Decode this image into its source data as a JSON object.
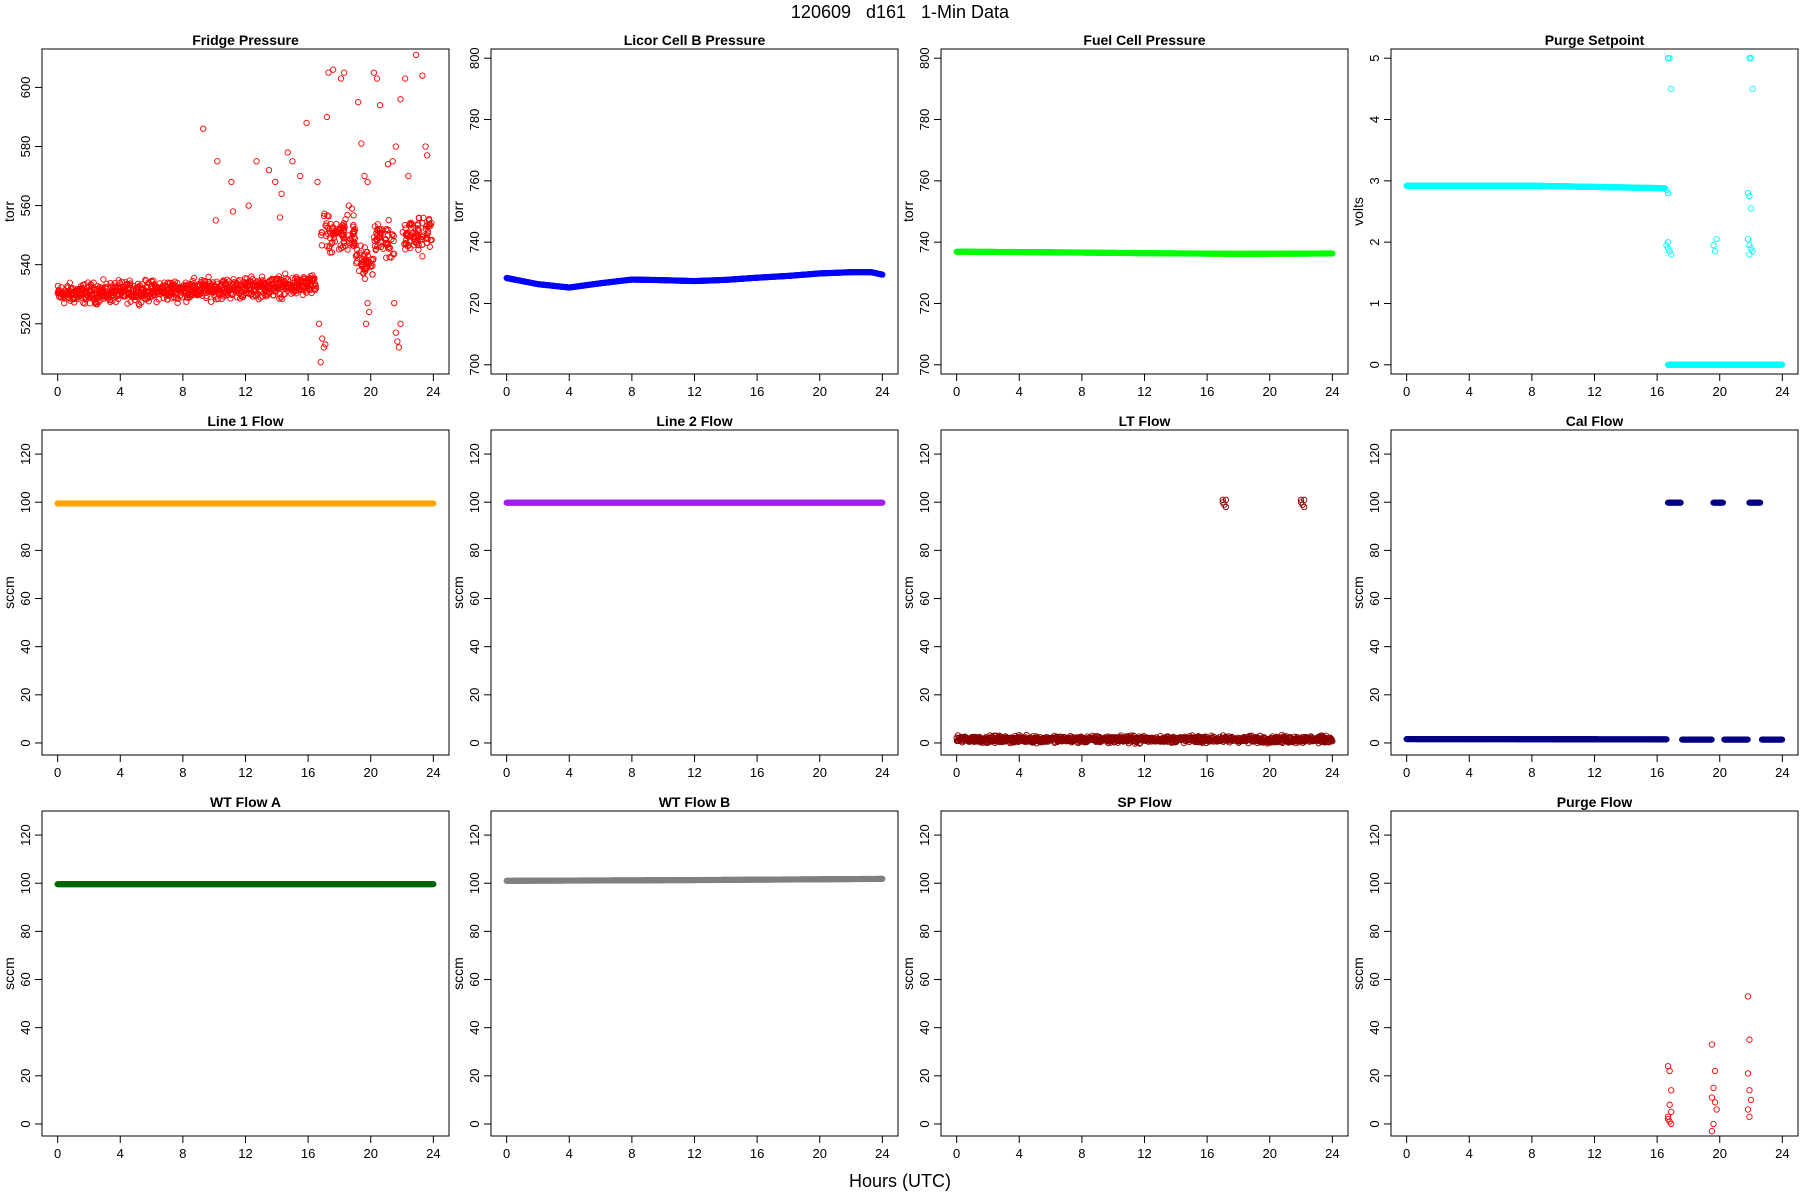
{
  "figure": {
    "title": "120609   d161   1-Min Data",
    "xlabel": "Hours (UTC)"
  },
  "chart_data": [
    {
      "type": "scatter",
      "title": "Fridge Pressure",
      "ylabel": "torr",
      "color": "#ff0000",
      "xlim": [
        -1,
        25
      ],
      "ylim": [
        503,
        613
      ],
      "xticks": [
        0,
        4,
        8,
        12,
        16,
        20,
        24
      ],
      "yticks": [
        520,
        540,
        560,
        580,
        600
      ],
      "series": [
        {
          "mode": "noisy",
          "x_start": 0,
          "x_end": 16.5,
          "y_start": 530,
          "y_end": 533,
          "noise": 10
        }
      ],
      "points": [
        [
          9.3,
          586
        ],
        [
          10.2,
          575
        ],
        [
          10.1,
          555
        ],
        [
          11.1,
          568
        ],
        [
          11.2,
          558
        ],
        [
          12.2,
          560
        ],
        [
          12.7,
          575
        ],
        [
          13.5,
          572
        ],
        [
          13.9,
          568
        ],
        [
          14.3,
          564
        ],
        [
          14.7,
          578
        ],
        [
          15.0,
          575
        ],
        [
          14.2,
          556
        ],
        [
          15.5,
          570
        ],
        [
          15.9,
          588
        ],
        [
          16.6,
          568
        ],
        [
          17.2,
          590
        ],
        [
          17.3,
          605
        ],
        [
          17.6,
          606
        ],
        [
          18.1,
          603
        ],
        [
          18.3,
          605
        ],
        [
          18.6,
          560
        ],
        [
          18.8,
          559
        ],
        [
          19.2,
          595
        ],
        [
          19.4,
          581
        ],
        [
          19.6,
          570
        ],
        [
          19.8,
          568
        ],
        [
          20.2,
          605
        ],
        [
          20.4,
          603
        ],
        [
          20.6,
          594
        ],
        [
          21.1,
          574
        ],
        [
          21.4,
          575
        ],
        [
          21.6,
          580
        ],
        [
          21.9,
          596
        ],
        [
          22.2,
          603
        ],
        [
          22.4,
          570
        ],
        [
          22.9,
          611
        ],
        [
          23.3,
          604
        ],
        [
          23.5,
          580
        ],
        [
          23.6,
          577
        ],
        [
          16.9,
          515
        ],
        [
          17.0,
          512
        ],
        [
          16.7,
          520
        ],
        [
          16.8,
          507
        ],
        [
          17.1,
          513
        ],
        [
          19.7,
          520
        ],
        [
          19.8,
          527
        ],
        [
          19.9,
          524
        ],
        [
          21.5,
          527
        ],
        [
          21.6,
          517
        ],
        [
          21.7,
          514
        ],
        [
          21.8,
          512
        ],
        [
          21.9,
          520
        ]
      ],
      "clusters": [
        {
          "x_start": 16.8,
          "x_end": 19.0,
          "y_center": 550,
          "spread": 9,
          "count": 90
        },
        {
          "x_start": 19.0,
          "x_end": 20.2,
          "y_center": 541,
          "spread": 8,
          "count": 50
        },
        {
          "x_start": 20.2,
          "x_end": 21.5,
          "y_center": 549,
          "spread": 9,
          "count": 55
        },
        {
          "x_start": 22.0,
          "x_end": 23.9,
          "y_center": 550,
          "spread": 8,
          "count": 80
        }
      ],
      "marker": "open"
    },
    {
      "type": "scatter",
      "title": "Licor Cell B Pressure",
      "ylabel": "torr",
      "color": "#0000ff",
      "xlim": [
        -1,
        25
      ],
      "ylim": [
        697,
        803
      ],
      "xticks": [
        0,
        4,
        8,
        12,
        16,
        20,
        24
      ],
      "yticks": [
        700,
        720,
        740,
        760,
        780,
        800
      ],
      "series": [
        {
          "mode": "curve",
          "points": [
            [
              0,
              728.3
            ],
            [
              2,
              726.3
            ],
            [
              4,
              725.2
            ],
            [
              6,
              726.6
            ],
            [
              8,
              727.8
            ],
            [
              10,
              727.6
            ],
            [
              12,
              727.3
            ],
            [
              14,
              727.7
            ],
            [
              16,
              728.4
            ],
            [
              18,
              729.0
            ],
            [
              20,
              729.8
            ],
            [
              22,
              730.2
            ],
            [
              23.3,
              730.2
            ],
            [
              24,
              729.4
            ]
          ]
        }
      ],
      "marker": "filled"
    },
    {
      "type": "scatter",
      "title": "Fuel Cell Pressure",
      "ylabel": "torr",
      "color": "#00ff00",
      "xlim": [
        -1,
        25
      ],
      "ylim": [
        697,
        803
      ],
      "xticks": [
        0,
        4,
        8,
        12,
        16,
        20,
        24
      ],
      "yticks": [
        700,
        720,
        740,
        760,
        780,
        800
      ],
      "series": [
        {
          "mode": "curve",
          "points": [
            [
              0,
              736.9
            ],
            [
              6,
              736.7
            ],
            [
              12,
              736.4
            ],
            [
              18,
              736.2
            ],
            [
              24,
              736.3
            ]
          ]
        }
      ],
      "marker": "filled"
    },
    {
      "type": "scatter",
      "title": "Purge Setpoint",
      "ylabel": "volts",
      "color": "#00ffff",
      "xlim": [
        -1,
        25
      ],
      "ylim": [
        -0.15,
        5.15
      ],
      "xticks": [
        0,
        4,
        8,
        12,
        16,
        20,
        24
      ],
      "yticks": [
        0,
        1,
        2,
        3,
        4,
        5
      ],
      "series": [
        {
          "mode": "curve",
          "points": [
            [
              0,
              2.92
            ],
            [
              8,
              2.92
            ],
            [
              16.5,
              2.88
            ]
          ]
        },
        {
          "mode": "curve",
          "points": [
            [
              16.7,
              0.0
            ],
            [
              24,
              0.0
            ]
          ]
        }
      ],
      "points": [
        [
          16.7,
          5.0
        ],
        [
          16.8,
          5.0
        ],
        [
          16.9,
          4.5
        ],
        [
          16.6,
          2.85
        ],
        [
          16.7,
          2.8
        ],
        [
          16.6,
          1.95
        ],
        [
          16.7,
          1.9
        ],
        [
          16.8,
          1.85
        ],
        [
          16.9,
          1.8
        ],
        [
          16.7,
          2.0
        ],
        [
          19.6,
          1.95
        ],
        [
          19.7,
          1.85
        ],
        [
          19.8,
          2.05
        ],
        [
          21.9,
          5.0
        ],
        [
          22.0,
          5.0
        ],
        [
          22.1,
          4.5
        ],
        [
          21.8,
          2.8
        ],
        [
          21.9,
          2.75
        ],
        [
          22.0,
          2.55
        ],
        [
          21.8,
          2.05
        ],
        [
          21.9,
          1.95
        ],
        [
          22.0,
          1.9
        ],
        [
          22.1,
          1.85
        ],
        [
          21.9,
          1.8
        ]
      ],
      "marker": "open"
    },
    {
      "type": "scatter",
      "title": "Line 1 Flow",
      "ylabel": "sccm",
      "color": "#ffa500",
      "xlim": [
        -1,
        25
      ],
      "ylim": [
        -5,
        130
      ],
      "xticks": [
        0,
        4,
        8,
        12,
        16,
        20,
        24
      ],
      "yticks": [
        0,
        20,
        40,
        60,
        80,
        100,
        120
      ],
      "series": [
        {
          "mode": "curve",
          "points": [
            [
              0,
              99.5
            ],
            [
              24,
              99.5
            ]
          ]
        }
      ],
      "marker": "filled"
    },
    {
      "type": "scatter",
      "title": "Line 2 Flow",
      "ylabel": "sccm",
      "color": "#a020f0",
      "xlim": [
        -1,
        25
      ],
      "ylim": [
        -5,
        130
      ],
      "xticks": [
        0,
        4,
        8,
        12,
        16,
        20,
        24
      ],
      "yticks": [
        0,
        20,
        40,
        60,
        80,
        100,
        120
      ],
      "series": [
        {
          "mode": "curve",
          "points": [
            [
              0,
              99.8
            ],
            [
              24,
              99.8
            ]
          ]
        }
      ],
      "marker": "filled"
    },
    {
      "type": "scatter",
      "title": "LT Flow",
      "ylabel": "sccm",
      "color": "#8b0000",
      "xlim": [
        -1,
        25
      ],
      "ylim": [
        -5,
        130
      ],
      "xticks": [
        0,
        4,
        8,
        12,
        16,
        20,
        24
      ],
      "yticks": [
        0,
        20,
        40,
        60,
        80,
        100,
        120
      ],
      "series": [
        {
          "mode": "noisy",
          "x_start": 0,
          "x_end": 24,
          "y_start": 1.5,
          "y_end": 1.5,
          "noise": 4
        }
      ],
      "points": [
        [
          17.0,
          101
        ],
        [
          17.1,
          99
        ],
        [
          17.2,
          98
        ],
        [
          17.0,
          100
        ],
        [
          17.2,
          101
        ],
        [
          22.0,
          101
        ],
        [
          22.1,
          99
        ],
        [
          22.2,
          98
        ],
        [
          22.0,
          100
        ],
        [
          22.2,
          101
        ]
      ],
      "marker": "open"
    },
    {
      "type": "scatter",
      "title": "Cal Flow",
      "ylabel": "sccm",
      "color": "#000080",
      "xlim": [
        -1,
        25
      ],
      "ylim": [
        -5,
        130
      ],
      "xticks": [
        0,
        4,
        8,
        12,
        16,
        20,
        24
      ],
      "yticks": [
        0,
        20,
        40,
        60,
        80,
        100,
        120
      ],
      "series": [
        {
          "mode": "curve",
          "points": [
            [
              0,
              1.6
            ],
            [
              16.6,
              1.5
            ]
          ]
        },
        {
          "mode": "curve",
          "points": [
            [
              16.7,
              99.8
            ],
            [
              17.5,
              99.8
            ]
          ]
        },
        {
          "mode": "curve",
          "points": [
            [
              17.6,
              1.4
            ],
            [
              19.5,
              1.4
            ]
          ]
        },
        {
          "mode": "curve",
          "points": [
            [
              19.6,
              99.8
            ],
            [
              20.2,
              99.8
            ]
          ]
        },
        {
          "mode": "curve",
          "points": [
            [
              20.3,
              1.4
            ],
            [
              21.8,
              1.4
            ]
          ]
        },
        {
          "mode": "curve",
          "points": [
            [
              21.9,
              99.8
            ],
            [
              22.6,
              99.8
            ]
          ]
        },
        {
          "mode": "curve",
          "points": [
            [
              22.7,
              1.4
            ],
            [
              24,
              1.4
            ]
          ]
        }
      ],
      "marker": "filled"
    },
    {
      "type": "scatter",
      "title": "WT Flow A",
      "ylabel": "sccm",
      "color": "#006400",
      "xlim": [
        -1,
        25
      ],
      "ylim": [
        -5,
        130
      ],
      "xticks": [
        0,
        4,
        8,
        12,
        16,
        20,
        24
      ],
      "yticks": [
        0,
        20,
        40,
        60,
        80,
        100,
        120
      ],
      "series": [
        {
          "mode": "curve",
          "points": [
            [
              0,
              99.6
            ],
            [
              24,
              99.6
            ]
          ]
        }
      ],
      "marker": "filled"
    },
    {
      "type": "scatter",
      "title": "WT Flow B",
      "ylabel": "sccm",
      "color": "#808080",
      "xlim": [
        -1,
        25
      ],
      "ylim": [
        -5,
        130
      ],
      "xticks": [
        0,
        4,
        8,
        12,
        16,
        20,
        24
      ],
      "yticks": [
        0,
        20,
        40,
        60,
        80,
        100,
        120
      ],
      "series": [
        {
          "mode": "curve",
          "points": [
            [
              0,
              101.0
            ],
            [
              12,
              101.3
            ],
            [
              24,
              101.8
            ]
          ]
        }
      ],
      "marker": "filled"
    },
    {
      "type": "scatter",
      "title": "SP Flow",
      "ylabel": "sccm",
      "color": "#000000",
      "xlim": [
        -1,
        25
      ],
      "ylim": [
        -5,
        130
      ],
      "xticks": [
        0,
        4,
        8,
        12,
        16,
        20,
        24
      ],
      "yticks": [
        0,
        20,
        40,
        60,
        80,
        100,
        120
      ],
      "series": [],
      "marker": "open"
    },
    {
      "type": "scatter",
      "title": "Purge Flow",
      "ylabel": "sccm",
      "color": "#ff0000",
      "xlim": [
        -1,
        25
      ],
      "ylim": [
        -5,
        130
      ],
      "xticks": [
        0,
        4,
        8,
        12,
        16,
        20,
        24
      ],
      "yticks": [
        0,
        20,
        40,
        60,
        80,
        100,
        120
      ],
      "series": [],
      "points": [
        [
          16.7,
          24
        ],
        [
          16.8,
          22
        ],
        [
          16.9,
          14
        ],
        [
          16.8,
          8
        ],
        [
          16.9,
          5
        ],
        [
          16.7,
          3
        ],
        [
          16.8,
          1
        ],
        [
          16.9,
          0
        ],
        [
          16.7,
          2
        ],
        [
          19.5,
          33
        ],
        [
          19.7,
          22
        ],
        [
          19.6,
          15
        ],
        [
          19.5,
          11
        ],
        [
          19.7,
          9
        ],
        [
          19.8,
          6
        ],
        [
          19.6,
          0
        ],
        [
          19.5,
          -3
        ],
        [
          21.8,
          53
        ],
        [
          21.9,
          35
        ],
        [
          21.8,
          21
        ],
        [
          21.9,
          14
        ],
        [
          22.0,
          10
        ],
        [
          21.8,
          6
        ],
        [
          21.9,
          3
        ]
      ],
      "marker": "open"
    }
  ]
}
